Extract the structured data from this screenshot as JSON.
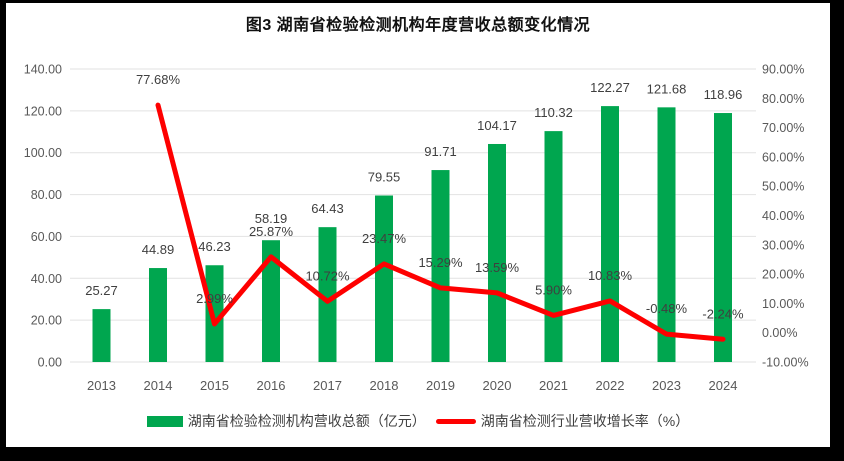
{
  "title": "图3 湖南省检验检测机构年度营收总额变化情况",
  "colors": {
    "bar_series": "#00A64F",
    "line_series": "#FE0000",
    "axis_text": "#595959",
    "data_label_text": "#3F3F3F",
    "gridline": "#E2E2E2",
    "frame_background": "#000000",
    "chart_background": "#FFFFFF"
  },
  "chart_data": {
    "type": "bar",
    "subtype": "combo-bar-line-dual-axis",
    "title": "图3 湖南省检验检测机构年度营收总额变化情况",
    "categories": [
      "2013",
      "2014",
      "2015",
      "2016",
      "2017",
      "2018",
      "2019",
      "2020",
      "2021",
      "2022",
      "2023",
      "2024"
    ],
    "series": [
      {
        "name": "湖南省检验检测机构营收总额（亿元）",
        "chart_type": "bar",
        "y_axis": "left",
        "color": "#00A64F",
        "values": [
          25.27,
          44.89,
          46.23,
          58.19,
          64.43,
          79.55,
          91.71,
          104.17,
          110.32,
          122.27,
          121.68,
          118.96
        ],
        "data_labels": [
          "25.27",
          "44.89",
          "46.23",
          "58.19",
          "64.43",
          "79.55",
          "91.71",
          "104.17",
          "110.32",
          "122.27",
          "121.68",
          "118.96"
        ]
      },
      {
        "name": "湖南省检测行业营收增长率（%）",
        "chart_type": "line",
        "y_axis": "right",
        "color": "#FE0000",
        "values": [
          null,
          77.68,
          2.99,
          25.87,
          10.72,
          23.47,
          15.29,
          13.59,
          5.9,
          10.83,
          -0.48,
          -2.24
        ],
        "data_labels": [
          null,
          "77.68%",
          "2.99%",
          "25.87%",
          "10.72%",
          "23.47%",
          "15.29%",
          "13.59%",
          "5.90%",
          "10.83%",
          "-0.48%",
          "-2.24%"
        ]
      }
    ],
    "left_axis": {
      "min": 0,
      "max": 140,
      "step": 20,
      "labels": [
        "140.00",
        "120.00",
        "100.00",
        "80.00",
        "60.00",
        "40.00",
        "20.00",
        "0.00"
      ]
    },
    "right_axis": {
      "min": -10,
      "max": 90,
      "step": 10,
      "labels": [
        "90.00%",
        "80.00%",
        "70.00%",
        "60.00%",
        "50.00%",
        "40.00%",
        "30.00%",
        "20.00%",
        "10.00%",
        "0.00%",
        "-10.00%"
      ]
    },
    "grid": true,
    "legend_position": "bottom"
  },
  "legend": {
    "items": [
      {
        "label": "湖南省检验检测机构营收总额（亿元）",
        "marker": "bar-swatch",
        "color": "#00A64F"
      },
      {
        "label": "湖南省检测行业营收增长率（%）",
        "marker": "line-swatch",
        "color": "#FE0000"
      }
    ]
  }
}
